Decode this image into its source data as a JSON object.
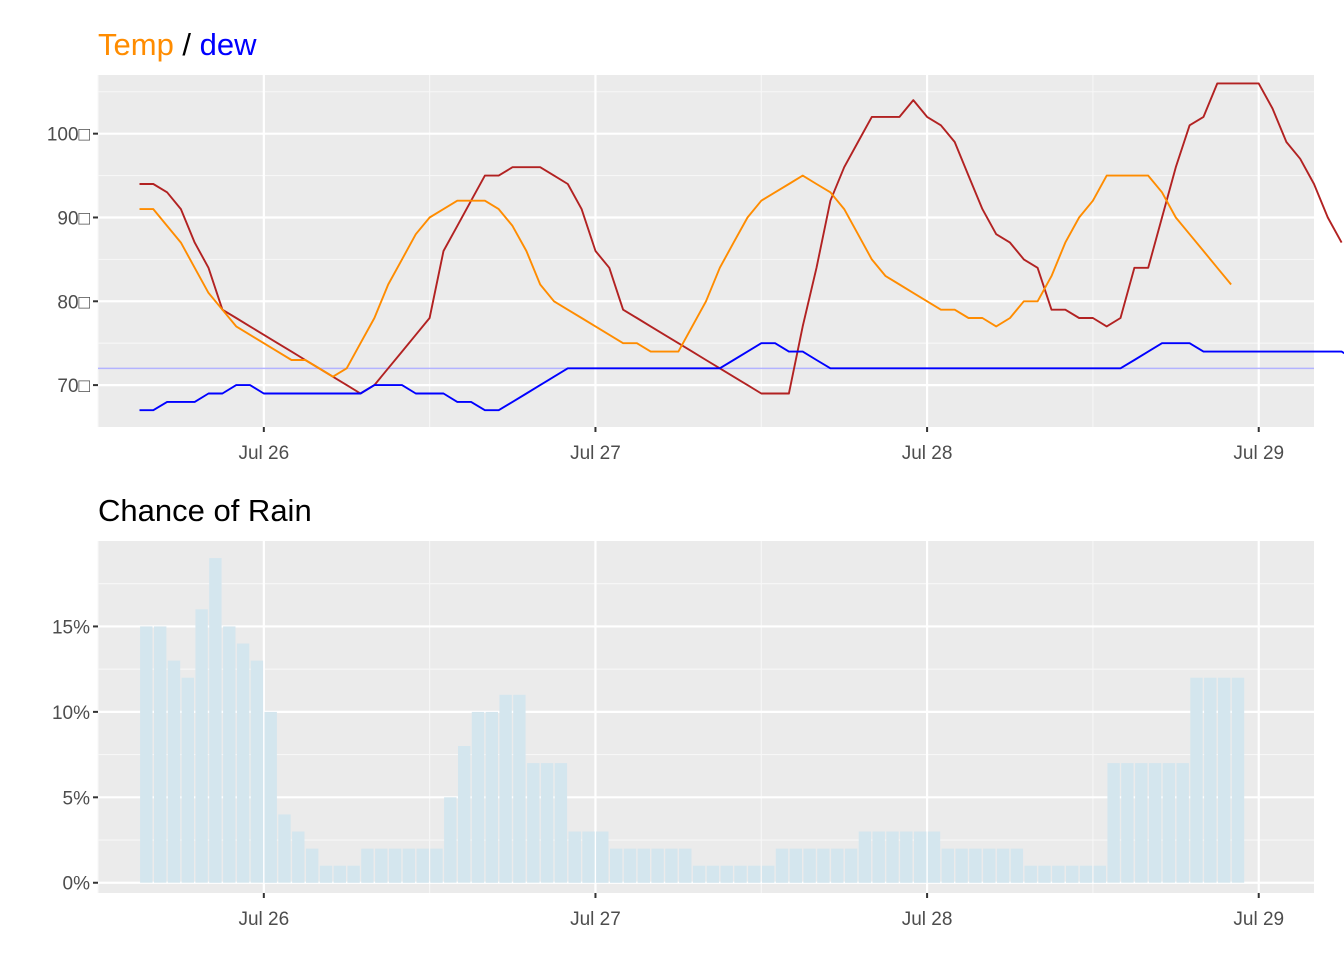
{
  "chart_data": [
    {
      "type": "line",
      "title_parts": [
        {
          "text": "Temp",
          "color": "#ff8c00"
        },
        {
          "text": " / ",
          "color": "#000000"
        },
        {
          "text": "dew",
          "color": "#0000ff"
        }
      ],
      "xlabel": "",
      "ylabel": "",
      "x_start": "Jul 25 15:00",
      "x_step_hours": 1,
      "x_ticks": [
        "Jul 26",
        "Jul 27",
        "Jul 28",
        "Jul 29"
      ],
      "x_range": [
        "Jul 25 12:00",
        "Jul 29 04:00"
      ],
      "y_ticks": [
        {
          "value": 70,
          "label": "70□"
        },
        {
          "value": 80,
          "label": "80□"
        },
        {
          "value": 90,
          "label": "90□"
        },
        {
          "value": 100,
          "label": "100□"
        }
      ],
      "ylim": [
        65,
        107
      ],
      "grid": true,
      "reference_line": {
        "value": 72,
        "color": "#b3b3ff"
      },
      "background": "#ebebeb",
      "series": [
        {
          "color": "#b22222",
          "values": [
            94,
            94,
            93,
            91,
            87,
            84,
            79,
            78,
            77,
            76,
            75,
            74,
            73,
            72,
            71,
            70,
            69,
            70,
            72,
            74,
            76,
            78,
            86,
            89,
            92,
            95,
            95,
            96,
            96,
            96,
            95,
            94,
            91,
            86,
            84,
            79,
            78,
            77,
            76,
            75,
            74,
            73,
            72,
            71,
            70,
            69,
            69,
            69,
            77,
            84,
            92,
            96,
            99,
            102,
            102,
            102,
            104,
            102,
            101,
            99,
            95,
            91,
            88,
            87,
            85,
            84,
            79,
            79,
            78,
            78,
            77,
            78,
            84,
            84,
            90,
            96,
            101,
            102,
            106,
            106,
            106,
            106,
            103,
            99,
            97,
            94,
            90,
            87
          ]
        },
        {
          "color": "#ff8c00",
          "values": [
            91,
            91,
            89,
            87,
            84,
            81,
            79,
            77,
            76,
            75,
            74,
            73,
            73,
            72,
            71,
            72,
            75,
            78,
            82,
            85,
            88,
            90,
            91,
            92,
            92,
            92,
            91,
            89,
            86,
            82,
            80,
            79,
            78,
            77,
            76,
            75,
            75,
            74,
            74,
            74,
            77,
            80,
            84,
            87,
            90,
            92,
            93,
            94,
            95,
            94,
            93,
            91,
            88,
            85,
            83,
            82,
            81,
            80,
            79,
            79,
            78,
            78,
            77,
            78,
            80,
            80,
            83,
            87,
            90,
            92,
            95,
            95,
            95,
            95,
            93,
            90,
            88,
            86,
            84,
            82
          ]
        },
        {
          "color": "#0000ff",
          "values": [
            67,
            67,
            68,
            68,
            68,
            69,
            69,
            70,
            70,
            69,
            69,
            69,
            69,
            69,
            69,
            69,
            69,
            70,
            70,
            70,
            69,
            69,
            69,
            68,
            68,
            67,
            67,
            68,
            69,
            70,
            71,
            72,
            72,
            72,
            72,
            72,
            72,
            72,
            72,
            72,
            72,
            72,
            72,
            73,
            74,
            75,
            75,
            74,
            74,
            73,
            72,
            72,
            72,
            72,
            72,
            72,
            72,
            72,
            72,
            72,
            72,
            72,
            72,
            72,
            72,
            72,
            72,
            72,
            72,
            72,
            72,
            72,
            73,
            74,
            75,
            75,
            75,
            74,
            74,
            74,
            74,
            74,
            74,
            74,
            74,
            74,
            74,
            74,
            73,
            73
          ]
        }
      ]
    },
    {
      "type": "bar",
      "title": "Chance of Rain",
      "xlabel": "",
      "ylabel": "",
      "x_start": "Jul 25 15:00",
      "x_step_hours": 1,
      "x_ticks": [
        "Jul 26",
        "Jul 27",
        "Jul 28",
        "Jul 29"
      ],
      "x_range": [
        "Jul 25 12:00",
        "Jul 29 04:00"
      ],
      "y_ticks": [
        {
          "value": 0,
          "label": "0%"
        },
        {
          "value": 5,
          "label": "5%"
        },
        {
          "value": 10,
          "label": "10%"
        },
        {
          "value": 15,
          "label": "15%"
        }
      ],
      "ylim": [
        -0.6,
        20
      ],
      "unit": "%",
      "grid": true,
      "background": "#ebebeb",
      "bar_color": "#d4e6ee",
      "values": [
        15,
        15,
        13,
        12,
        16,
        19,
        15,
        14,
        13,
        10,
        4,
        3,
        2,
        1,
        1,
        1,
        2,
        2,
        2,
        2,
        2,
        2,
        5,
        8,
        10,
        10,
        11,
        11,
        7,
        7,
        7,
        3,
        3,
        3,
        2,
        2,
        2,
        2,
        2,
        2,
        1,
        1,
        1,
        1,
        1,
        1,
        2,
        2,
        2,
        2,
        2,
        2,
        3,
        3,
        3,
        3,
        3,
        3,
        2,
        2,
        2,
        2,
        2,
        2,
        1,
        1,
        1,
        1,
        1,
        1,
        7,
        7,
        7,
        7,
        7,
        7,
        12,
        12,
        12,
        12
      ]
    }
  ]
}
